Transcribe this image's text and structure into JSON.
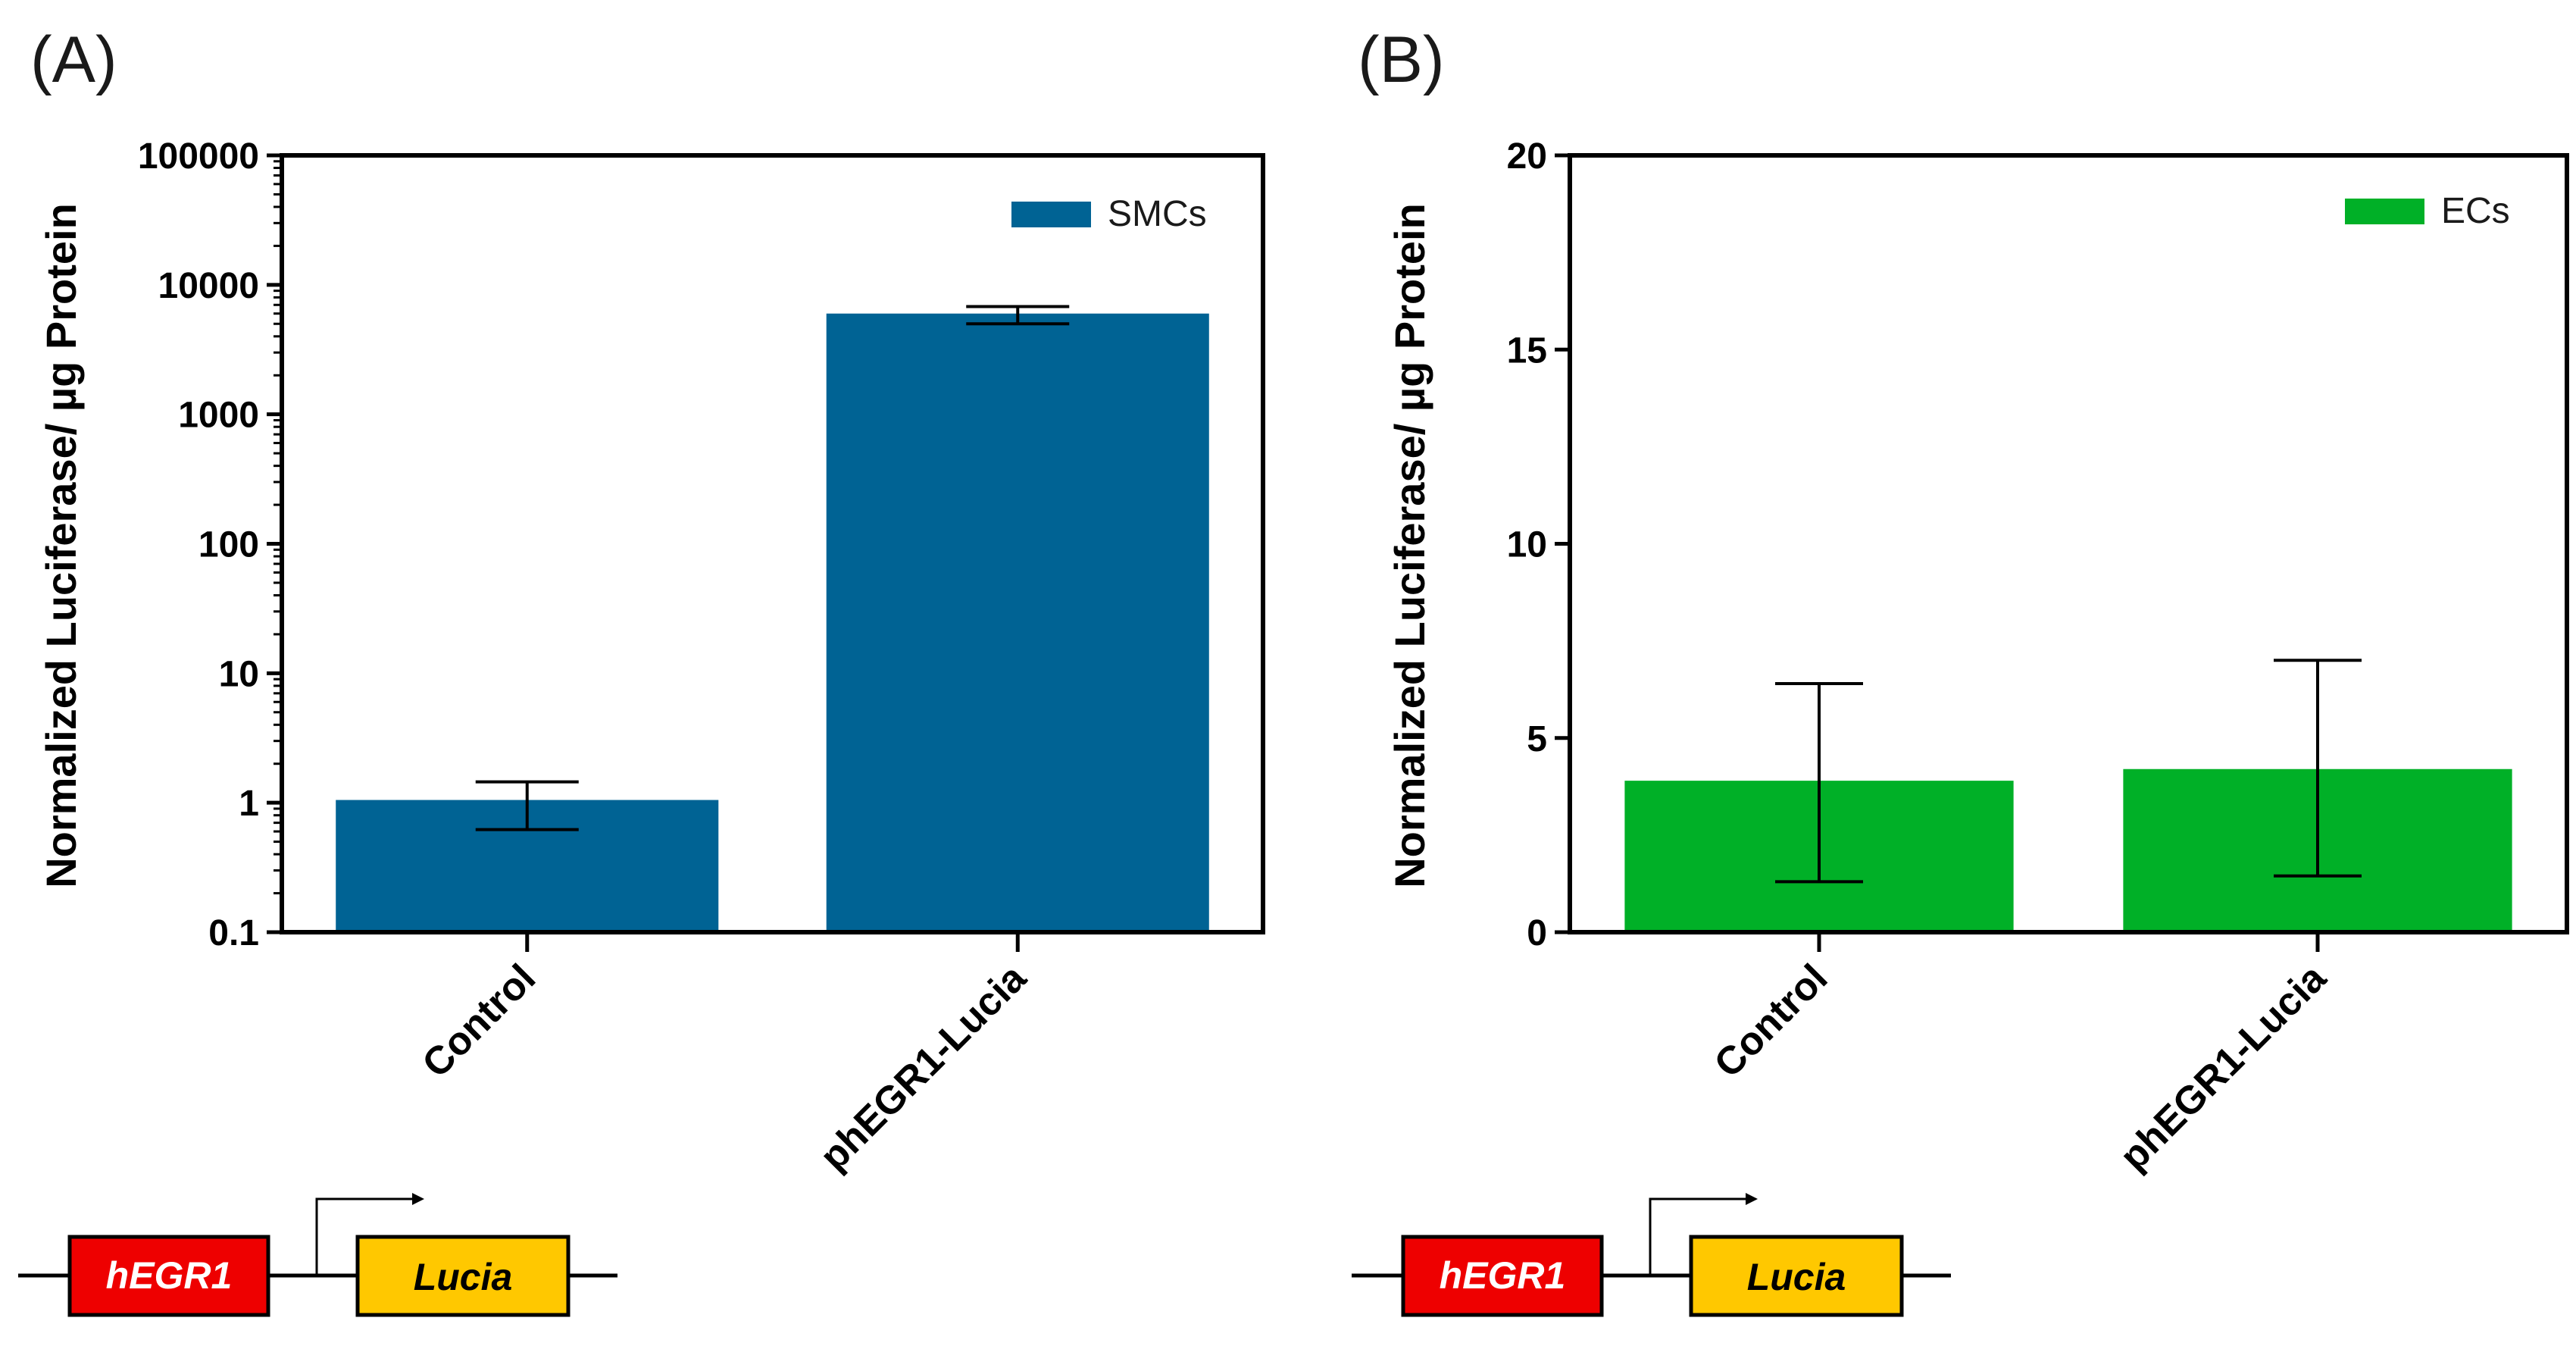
{
  "chart_data": [
    {
      "panel_label": "(A)",
      "type": "bar",
      "yscale": "log",
      "ylim": [
        0.1,
        100000
      ],
      "yticks": [
        "0.1",
        "1",
        "10",
        "100",
        "1000",
        "10000",
        "100000"
      ],
      "ylabel": "Normalized Luciferase/ µg Protein",
      "categories": [
        "Control",
        "phEGR1-Lucia"
      ],
      "series": [
        {
          "name": "SMCs",
          "color": "#006394",
          "values": [
            1.05,
            6000
          ],
          "error_low": [
            0.62,
            5000
          ],
          "error_high": [
            1.45,
            6800
          ]
        }
      ],
      "legend": "top-right",
      "construct": {
        "promoter": "hEGR1",
        "reporter": "Lucia",
        "promoter_color": "#ee0000",
        "reporter_color": "#ffc800"
      }
    },
    {
      "panel_label": "(B)",
      "type": "bar",
      "yscale": "linear",
      "ylim": [
        0,
        20
      ],
      "yticks": [
        "0",
        "5",
        "10",
        "15",
        "20"
      ],
      "ylabel": "Normalized Luciferase/ µg Protein",
      "categories": [
        "Control",
        "phEGR1-Lucia"
      ],
      "series": [
        {
          "name": "ECs",
          "color": "#00b027",
          "values": [
            3.9,
            4.2
          ],
          "error_low": [
            1.3,
            1.45
          ],
          "error_high": [
            6.4,
            7.0
          ]
        }
      ],
      "legend": "top-right",
      "construct": {
        "promoter": "hEGR1",
        "reporter": "Lucia",
        "promoter_color": "#ee0000",
        "reporter_color": "#ffc800"
      }
    }
  ]
}
